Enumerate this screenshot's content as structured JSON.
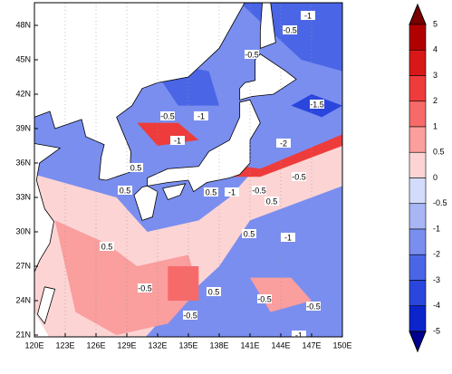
{
  "map": {
    "lon_labels": [
      "120E",
      "123E",
      "126E",
      "129E",
      "132E",
      "135E",
      "138E",
      "141E",
      "144E",
      "147E",
      "150E"
    ],
    "lat_labels": [
      "48N",
      "45N",
      "42N",
      "39N",
      "36N",
      "33N",
      "30N",
      "27N",
      "24N",
      "21N"
    ],
    "contour_labels": [
      "-1",
      "-0.5",
      "-0.5",
      "0.5",
      "-1",
      "0.5",
      "-1",
      "-1.5",
      "-2",
      "-0.5",
      "-1",
      "0.5",
      "-0.5",
      "0.5",
      "0.5",
      "-0.5",
      "-1",
      "-0.5",
      "0.5",
      "-0.5",
      "-0.5",
      "-1",
      "0.5",
      "-0.5"
    ],
    "colorbar": {
      "labels": [
        "5",
        "4",
        "3",
        "2",
        "1",
        "0.5",
        "0",
        "-0.5",
        "-1",
        "-2",
        "-3",
        "-4",
        "-5"
      ],
      "colors": [
        "#7a0000",
        "#b00000",
        "#d81818",
        "#ee3c3c",
        "#f76a6a",
        "#fa9e9e",
        "#fcd4d4",
        "#d4dcfc",
        "#a8b6f6",
        "#7a8ef0",
        "#4a66e6",
        "#2a46dc",
        "#0c24cc",
        "#000090"
      ]
    }
  }
}
